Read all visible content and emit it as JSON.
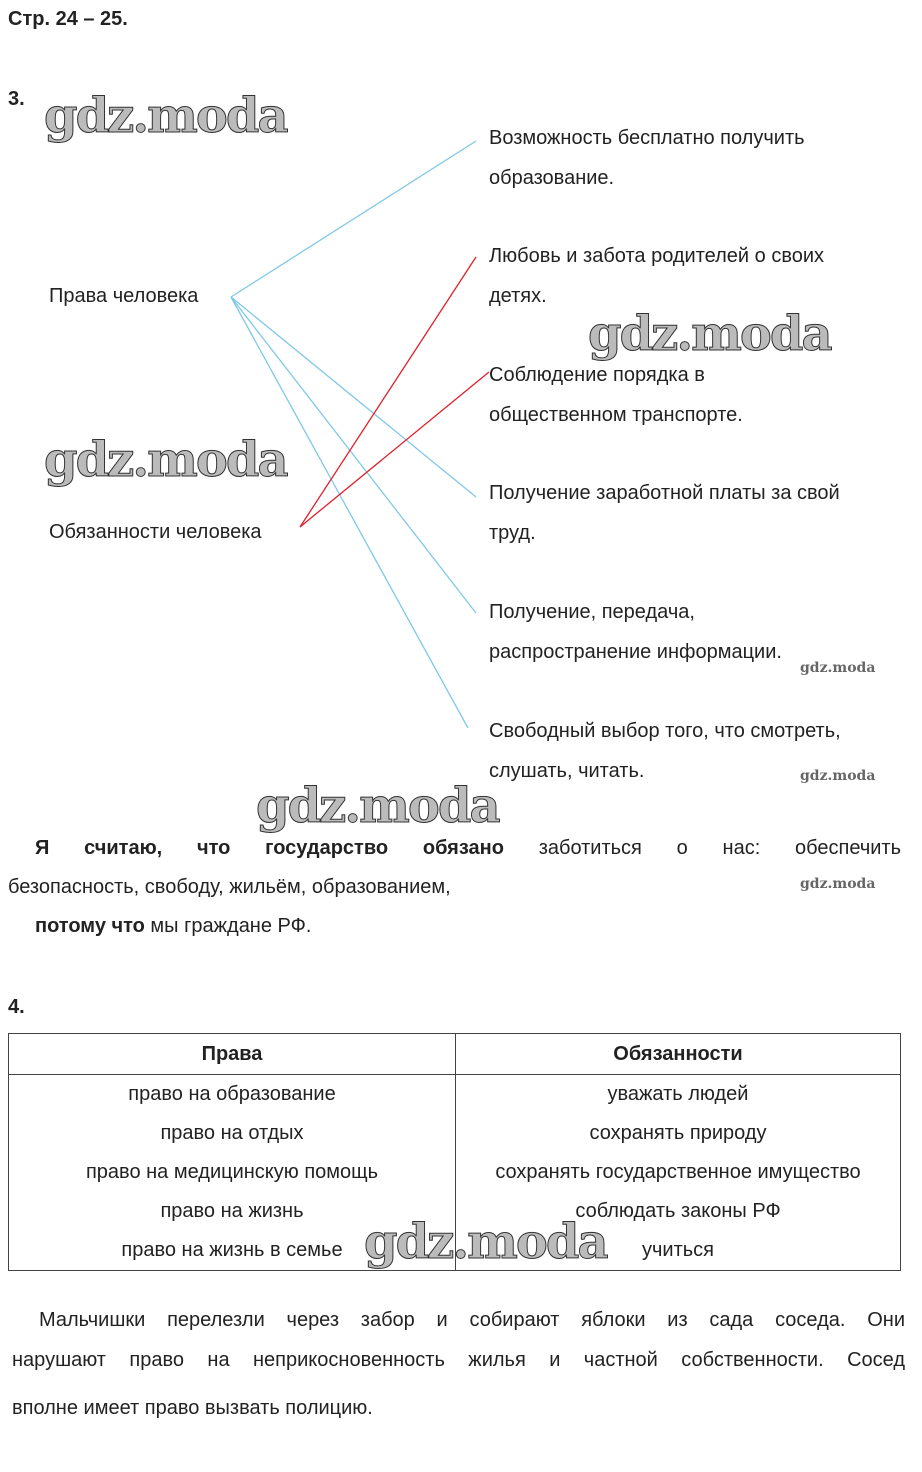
{
  "header": "Стр. 24 – 25.",
  "task3": {
    "number": "3.",
    "left": [
      "Права человека",
      "Обязанности человека"
    ],
    "right": [
      [
        "Возможность бесплатно получить",
        "образование."
      ],
      [
        "Любовь и забота родителей о своих",
        "детях."
      ],
      [
        "Соблюдение порядка в",
        "общественном транспорте."
      ],
      [
        "Получение заработной платы за свой",
        "труд."
      ],
      [
        "Получение, передача,",
        "распространение информации."
      ],
      [
        "Свободный выбор того, что смотреть,",
        "слушать, читать."
      ]
    ],
    "line_colors": {
      "rights": "#7fc8e8",
      "duties": "#e0202a"
    },
    "answer_bold": "Я считаю, что государство обязано",
    "answer_rest": " заботиться о нас: обеспечить",
    "answer_line2": "безопасность, свободу, жильём, образованием,",
    "because_bold": "потому что",
    "because_rest": " мы граждане РФ."
  },
  "task4": {
    "number": "4.",
    "headers": [
      "Права",
      "Обязанности"
    ],
    "rows": [
      [
        "право на образование",
        "уважать людей"
      ],
      [
        "право на отдых",
        "сохранять природу"
      ],
      [
        "право на медицинскую помощь",
        "сохранять государственное имущество"
      ],
      [
        "право на жизнь",
        "соблюдать законы РФ"
      ],
      [
        "право на жизнь в семье",
        "учиться"
      ]
    ],
    "paragraph": [
      "Мальчишки перелезли через забор и собирают яблоки из сада соседа. Они",
      "нарушают право на неприкосновенность жилья и частной собственности. Сосед",
      "вполне имеет право вызвать полицию."
    ]
  },
  "watermark": "gdz.moda"
}
